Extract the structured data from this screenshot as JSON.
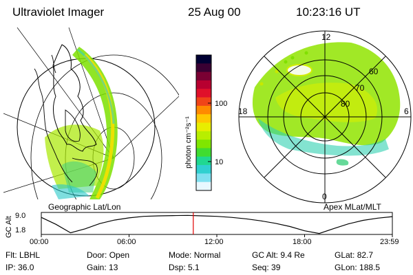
{
  "header": {
    "instrument": "Ultraviolet Imager",
    "date": "25 Aug 00",
    "time": "10:23:16 UT"
  },
  "left_panel": {
    "caption": "Geographic Lat/Lon"
  },
  "right_panel": {
    "caption": "Apex MLat/MLT",
    "mlt_labels": [
      "12",
      "18",
      "6",
      "0"
    ],
    "lat_labels": [
      "60",
      "70",
      "80"
    ]
  },
  "colorbar": {
    "unit_label": "photon cm⁻²s⁻¹",
    "tick_labels": [
      "100",
      "10"
    ],
    "colors": [
      "#000033",
      "#3a0033",
      "#7a0033",
      "#b80030",
      "#e0102a",
      "#f04418",
      "#ff8a00",
      "#ffc800",
      "#e8ee00",
      "#b8ee00",
      "#80e600",
      "#40dc30",
      "#20d890",
      "#30d0d0",
      "#80e0f0",
      "#e8f8ff"
    ]
  },
  "chart_data": {
    "type": "line",
    "title": "",
    "ylabel": "GC Alt",
    "y_tick_labels": [
      "9.0",
      "1.8"
    ],
    "ylim": [
      1.8,
      9.0
    ],
    "xlim": [
      0,
      24
    ],
    "x_tick_labels": [
      "00:00",
      "06:00",
      "12:00",
      "18:00",
      "23:59"
    ],
    "x": [
      0,
      1,
      2,
      3,
      4,
      5,
      6,
      7,
      8,
      9,
      10,
      11,
      12,
      13,
      14,
      15,
      16,
      17,
      18,
      19,
      20,
      21,
      22,
      23,
      24
    ],
    "values": [
      8.4,
      5.6,
      2.2,
      3.8,
      5.9,
      7.3,
      8.2,
      8.8,
      9.0,
      9.1,
      9.2,
      9.0,
      8.8,
      8.4,
      7.8,
      7.0,
      6.0,
      4.7,
      3.0,
      1.9,
      3.9,
      5.8,
      7.2,
      8.1,
      8.7
    ],
    "marker_time": 10.39,
    "marker_color": "#e00000"
  },
  "info": {
    "row1": [
      {
        "label": "Flt:",
        "value": "LBHL"
      },
      {
        "label": "Door:",
        "value": "Open"
      },
      {
        "label": "Mode:",
        "value": "Normal"
      },
      {
        "label": "GC Alt:",
        "value": "9.4 Re"
      },
      {
        "label": "GLat:",
        "value": "82.7"
      }
    ],
    "row2": [
      {
        "label": "IP:",
        "value": "36.0"
      },
      {
        "label": "Gain:",
        "value": "13"
      },
      {
        "label": "Dsp:",
        "value": "5.1"
      },
      {
        "label": "Seq:",
        "value": "39"
      },
      {
        "label": "GLon:",
        "value": "188.5"
      }
    ]
  }
}
